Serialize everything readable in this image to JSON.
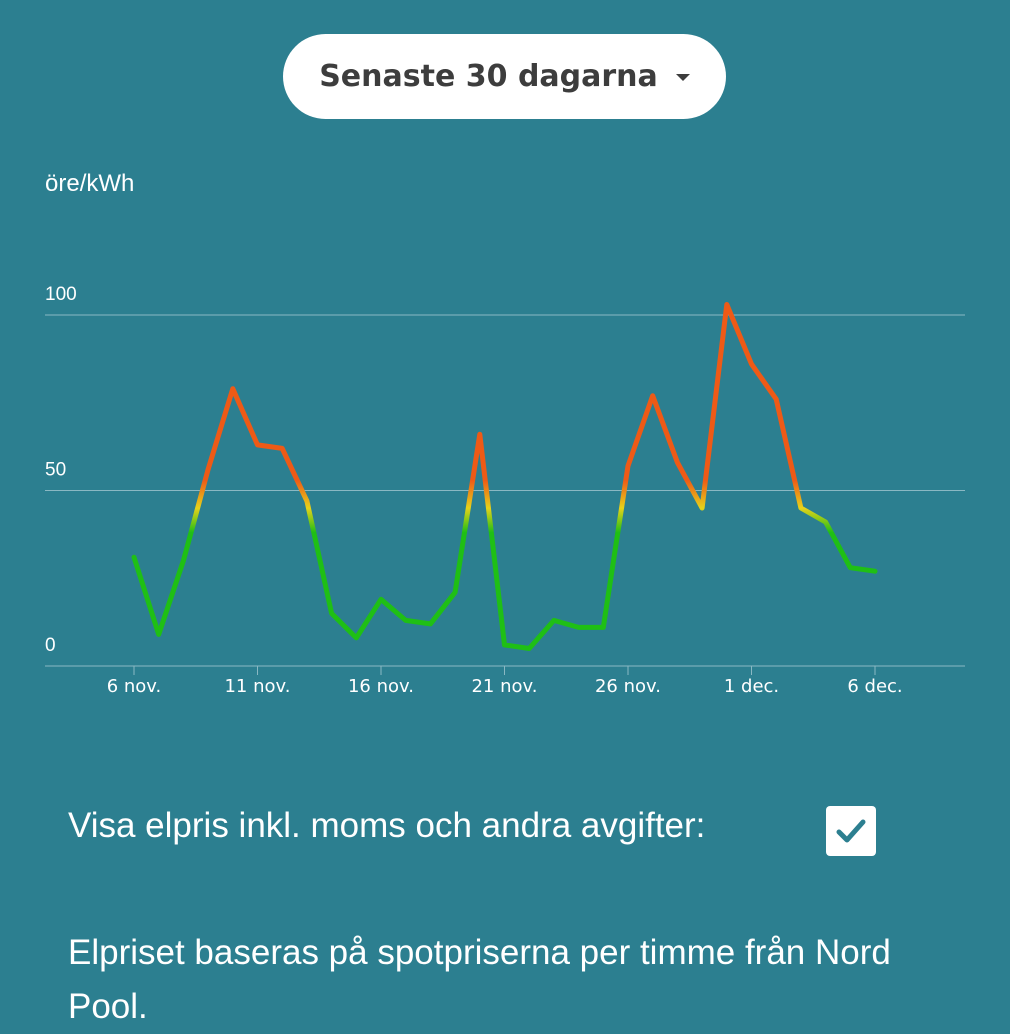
{
  "colors": {
    "background": "#2c7f90",
    "grid": "#8ab8c3",
    "low": "#1fbf15",
    "mid": "#e6d21a",
    "high": "#ee5a16"
  },
  "period_selector": {
    "label": "Senaste 30 dagarna",
    "icon": "caret-down-icon"
  },
  "unit_label": "öre/kWh",
  "chart_data": {
    "type": "line",
    "ylim": [
      0,
      100
    ],
    "y_ticks": [
      0,
      50,
      100
    ],
    "x_tick_labels": [
      "6 nov.",
      "11 nov.",
      "16 nov.",
      "21 nov.",
      "26 nov.",
      "1 dec.",
      "6 dec."
    ],
    "x_tick_days": [
      0,
      5,
      10,
      15,
      20,
      25,
      30
    ],
    "x_start_label": "6 nov.",
    "grid": true,
    "legend": "none",
    "color_scale": "green below ~45, yellow ~50, orange-red above",
    "series": [
      {
        "values": [
          31,
          9,
          30,
          56,
          79,
          63,
          62,
          47,
          15,
          8,
          19,
          13,
          12,
          21,
          66,
          6,
          5,
          13,
          11,
          11,
          57,
          77,
          58,
          45,
          103,
          86,
          76,
          45,
          41,
          28,
          27
        ]
      }
    ]
  },
  "vat_option": {
    "label": "Visa elpris inkl. moms och andra avgifter:",
    "checked": true,
    "icon": "check-icon"
  },
  "info_text": "Elpriset baseras på spotpriserna per timme från Nord Pool."
}
